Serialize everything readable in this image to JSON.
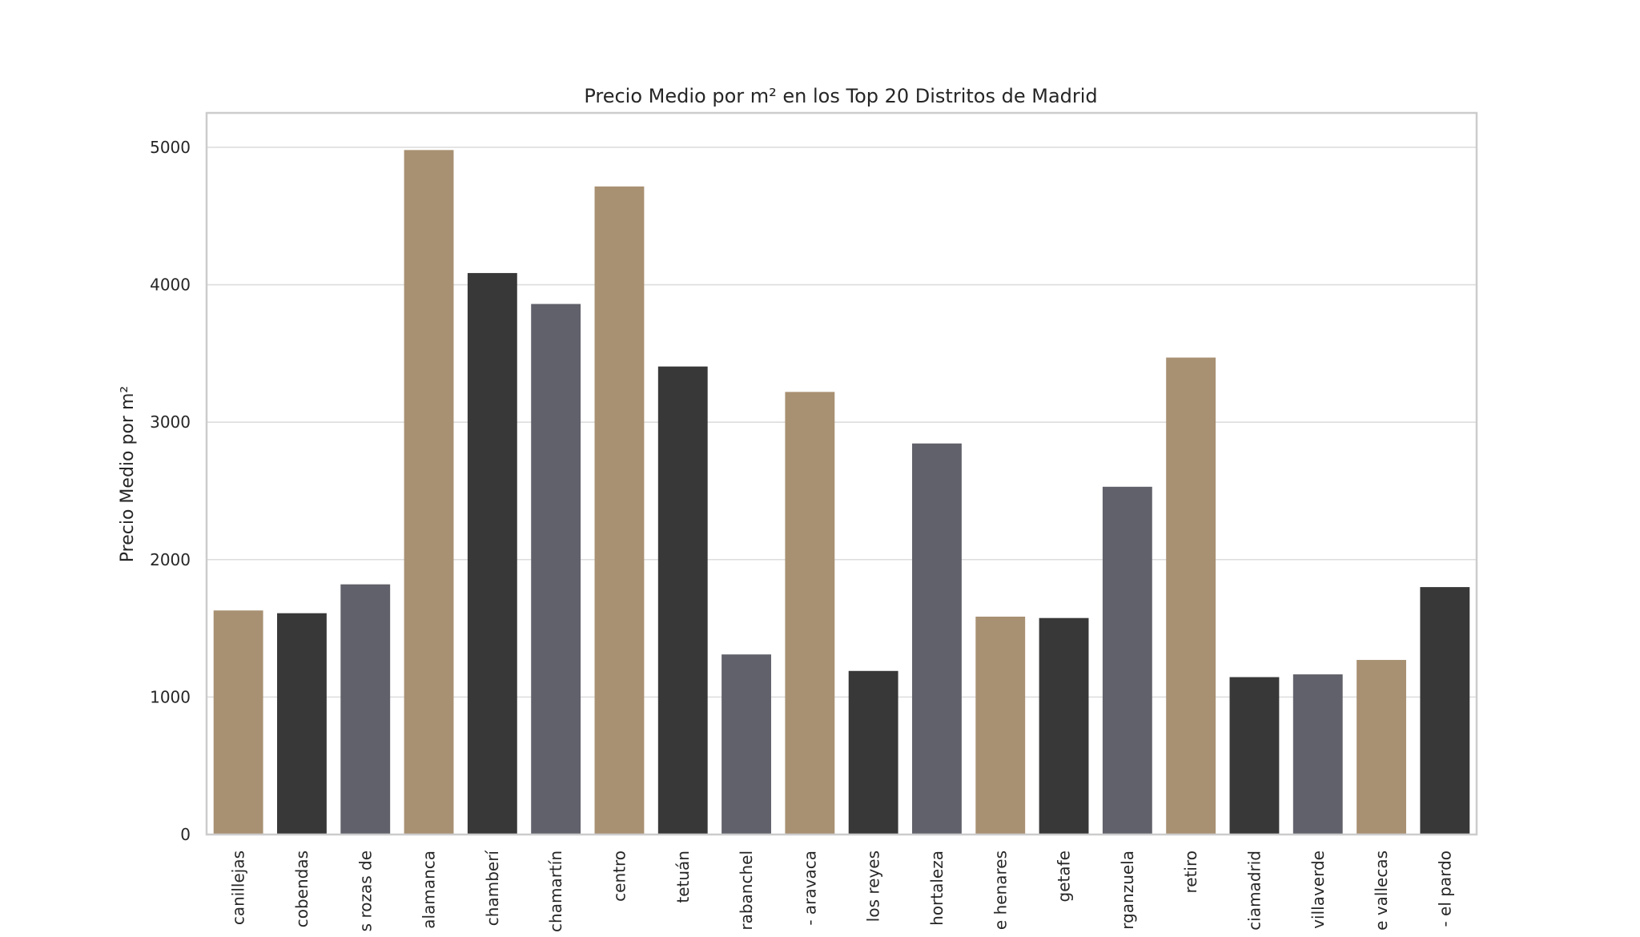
{
  "chart_data": {
    "type": "bar",
    "title": "Precio Medio por m² en los Top 20 Distritos de Madrid",
    "xlabel": "",
    "ylabel": "Precio Medio por m²",
    "ylim": [
      0,
      5250
    ],
    "yticks": [
      0,
      1000,
      2000,
      3000,
      4000,
      5000
    ],
    "grid": true,
    "categories": [
      "canillejas",
      "cobendas",
      "s rozas de",
      "alamanca",
      "chamberí",
      "chamartín",
      "centro",
      "tetuán",
      "rabanchel",
      "- aravaca",
      "los reyes",
      "hortaleza",
      "e henares",
      "getafe",
      "rganzuela",
      "retiro",
      "ciamadrid",
      "villaverde",
      "e vallecas",
      "- el pardo"
    ],
    "values": [
      1630,
      1610,
      1820,
      4980,
      4085,
      3860,
      4715,
      3405,
      1310,
      3220,
      1190,
      2845,
      1585,
      1575,
      2530,
      3470,
      1145,
      1165,
      1270,
      1800
    ],
    "bar_colors": [
      "#a89072",
      "#383838",
      "#60616a",
      "#a89072",
      "#383838",
      "#60616a",
      "#a89072",
      "#383838",
      "#60616a",
      "#a89072",
      "#383838",
      "#60616a",
      "#a89072",
      "#383838",
      "#60616a",
      "#a89072",
      "#383838",
      "#60616a",
      "#a89072",
      "#383838"
    ]
  }
}
